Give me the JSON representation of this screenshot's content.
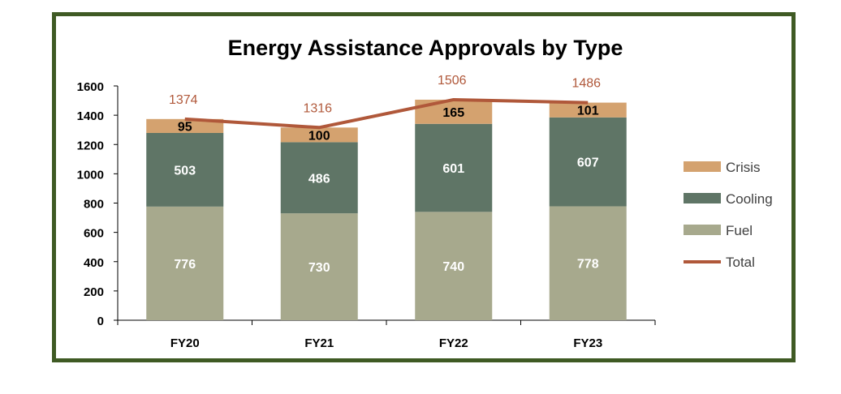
{
  "chart_data": {
    "type": "bar",
    "stacked": true,
    "title": "Energy Assistance Approvals by Type",
    "categories": [
      "FY20",
      "FY21",
      "FY22",
      "FY23"
    ],
    "series": [
      {
        "name": "Fuel",
        "kind": "bar",
        "color": "#a7a98d",
        "values": [
          776,
          730,
          740,
          778
        ]
      },
      {
        "name": "Cooling",
        "kind": "bar",
        "color": "#5f7566",
        "values": [
          503,
          486,
          601,
          607
        ]
      },
      {
        "name": "Crisis",
        "kind": "bar",
        "color": "#d4a26f",
        "values": [
          95,
          100,
          165,
          101
        ]
      },
      {
        "name": "Total",
        "kind": "line",
        "color": "#b0583a",
        "values": [
          1374,
          1316,
          1506,
          1486
        ]
      }
    ],
    "ylim": [
      0,
      1600
    ],
    "yticks": [
      0,
      200,
      400,
      600,
      800,
      1000,
      1200,
      1400,
      1600
    ],
    "legend_order": [
      "Crisis",
      "Cooling",
      "Fuel",
      "Total"
    ],
    "legend_position": "right",
    "grid": false,
    "frame_color": "#3f5a24"
  }
}
